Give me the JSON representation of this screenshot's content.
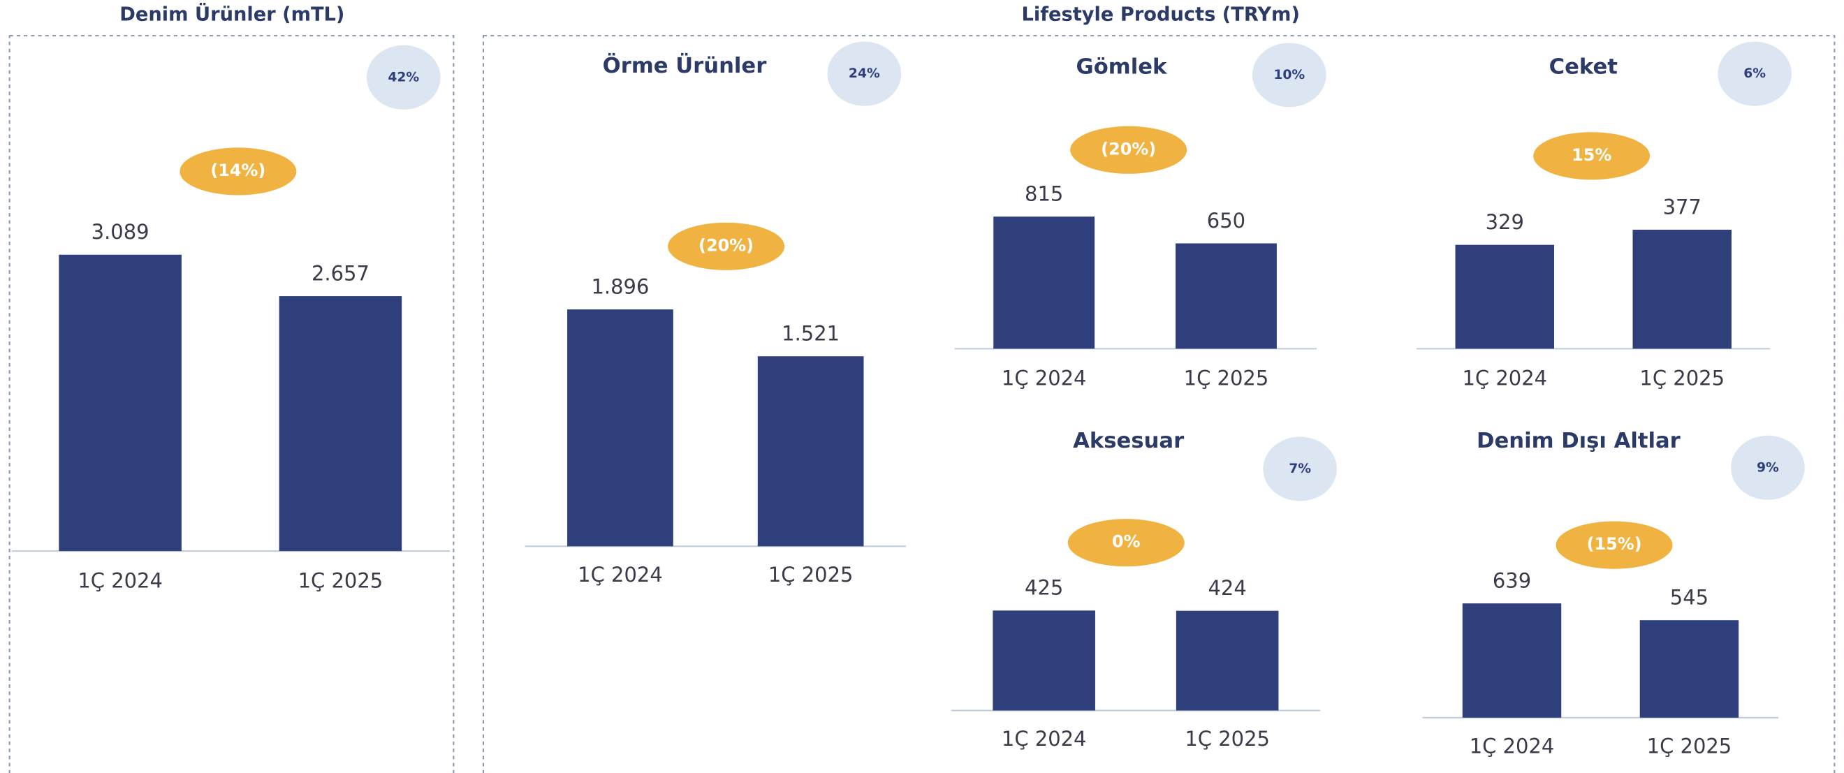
{
  "sections": [
    {
      "title": "Denim Ürünler (mTL)"
    },
    {
      "title": "Lifestyle Products (TRYm)"
    }
  ],
  "chart_data": [
    {
      "type": "bar",
      "share": "42%",
      "change": "(14%)",
      "categories": [
        "1Ç 2024",
        "1Ç 2025"
      ],
      "values": [
        3089,
        2657
      ],
      "value_labels": [
        "3.089",
        "2.657"
      ],
      "color": "#2e3f7c"
    },
    {
      "type": "bar",
      "title": "Örme Ürünler",
      "share": "24%",
      "change": "(20%)",
      "categories": [
        "1Ç 2024",
        "1Ç 2025"
      ],
      "values": [
        1896,
        1521
      ],
      "value_labels": [
        "1.896",
        "1.521"
      ],
      "color": "#2e3f7c"
    },
    {
      "type": "bar",
      "title": "Gömlek",
      "share": "10%",
      "change": "(20%)",
      "categories": [
        "1Ç 2024",
        "1Ç 2025"
      ],
      "values": [
        815,
        650
      ],
      "color": "#2e3f7c"
    },
    {
      "type": "bar",
      "title": "Ceket",
      "share": "6%",
      "change": "15%",
      "categories": [
        "1Ç 2024",
        "1Ç 2025"
      ],
      "values": [
        329,
        377
      ],
      "color": "#2e3f7c"
    },
    {
      "type": "bar",
      "title": "Aksesuar",
      "share": "7%",
      "change": "0%",
      "categories": [
        "1Ç 2024",
        "1Ç 2025"
      ],
      "values": [
        425,
        424
      ],
      "color": "#2e3f7c"
    },
    {
      "type": "bar",
      "title": "Denim Dışı Altlar",
      "share": "9%",
      "change": "(15%)",
      "categories": [
        "1Ç 2024",
        "1Ç 2025"
      ],
      "values": [
        639,
        545
      ],
      "color": "#2e3f7c"
    }
  ]
}
